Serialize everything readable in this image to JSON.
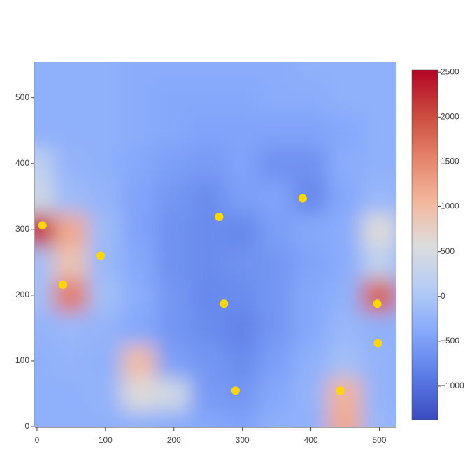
{
  "chart_data": {
    "type": "heatmap",
    "x": [
      0,
      50,
      100,
      150,
      200,
      250,
      300,
      350,
      400,
      450,
      500
    ],
    "y": [
      0,
      50,
      100,
      150,
      200,
      250,
      300,
      350,
      400,
      450,
      500,
      550
    ],
    "z": [
      [
        -300,
        -300,
        -300,
        -300,
        -350,
        -400,
        -450,
        -300,
        -300,
        1200,
        -200
      ],
      [
        -300,
        -300,
        -250,
        600,
        400,
        -550,
        -600,
        -400,
        -250,
        1100,
        -250
      ],
      [
        -300,
        -250,
        -300,
        1000,
        -500,
        -600,
        -700,
        -500,
        -300,
        -100,
        -250
      ],
      [
        -250,
        -200,
        -250,
        -400,
        -600,
        -700,
        -800,
        -600,
        -400,
        -200,
        -300
      ],
      [
        -100,
        1600,
        -100,
        -350,
        -600,
        -750,
        -700,
        -600,
        -400,
        -300,
        1800
      ],
      [
        -100,
        900,
        -200,
        -400,
        -650,
        -700,
        -650,
        -600,
        -450,
        -350,
        200
      ],
      [
        2200,
        1200,
        -150,
        -450,
        -650,
        -700,
        -750,
        -500,
        -400,
        -350,
        600
      ],
      [
        400,
        -150,
        -250,
        -450,
        -600,
        -700,
        -500,
        -450,
        -750,
        -400,
        -200
      ],
      [
        200,
        -250,
        -300,
        -400,
        -500,
        -550,
        -450,
        -650,
        -650,
        -350,
        -300
      ],
      [
        -300,
        -300,
        -300,
        -350,
        -400,
        -450,
        -450,
        -450,
        -450,
        -400,
        -300
      ],
      [
        -300,
        -300,
        -300,
        -350,
        -400,
        -400,
        -400,
        -350,
        -350,
        -300,
        -300
      ],
      [
        -300,
        -300,
        -300,
        -350,
        -350,
        -350,
        -350,
        -350,
        -300,
        -300,
        -300
      ]
    ],
    "colorscale": [
      "#3b4cc0",
      "#5b7be6",
      "#85a8fb",
      "#b5cdf5",
      "#dcdcdc",
      "#f3b79c",
      "#e5826a",
      "#c94a3e",
      "#b40426"
    ],
    "zlim": [
      -1375,
      2525
    ],
    "zticks": [
      {
        "value": -1000,
        "label": "−1000"
      },
      {
        "value": -500,
        "label": "−500"
      },
      0,
      500,
      1000,
      1500,
      2000,
      2500
    ],
    "xlim": [
      -3,
      525
    ],
    "ylim": [
      0,
      555
    ],
    "xticks": [
      0,
      100,
      200,
      300,
      400,
      500
    ],
    "yticks": [
      0,
      100,
      200,
      300,
      400,
      500
    ],
    "points": {
      "type": "scatter",
      "color": "#ffd700",
      "x": [
        8,
        38,
        93,
        266,
        273,
        290,
        388,
        443,
        497,
        498
      ],
      "y": [
        306,
        216,
        260,
        319,
        187,
        55,
        347,
        55,
        187,
        127
      ]
    }
  }
}
